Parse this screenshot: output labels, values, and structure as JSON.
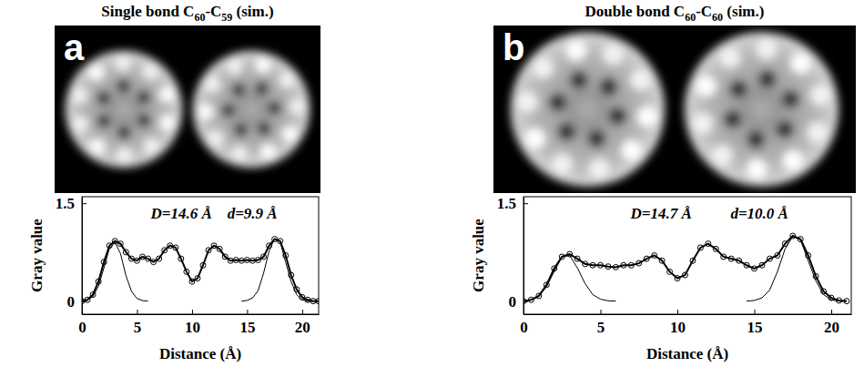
{
  "chart_data": [
    {
      "type": "line",
      "panel_label": "a",
      "title": "Single bond C60-C59 (sim.)",
      "x_label": "Distance (Å)",
      "y_label": "Gray value",
      "annotations": [
        "D=14.6 Å",
        "d=9.9 Å"
      ],
      "xlim": [
        0,
        21.5
      ],
      "ylim": [
        -0.2,
        1.6
      ],
      "xticks": [
        0,
        5,
        10,
        15,
        20
      ],
      "yticks": [
        0,
        1.5
      ],
      "grid": false,
      "series": [
        {
          "color": "#000000",
          "marker": "circle",
          "line_style": "solid",
          "x": [
            0,
            0.5,
            1,
            1.5,
            2,
            2.5,
            3,
            3.5,
            4,
            4.5,
            5,
            5.5,
            6,
            6.5,
            7,
            7.5,
            8,
            8.5,
            9,
            9.5,
            10,
            10.5,
            11,
            11.5,
            12,
            12.5,
            13,
            13.5,
            14,
            14.5,
            15,
            15.5,
            16,
            16.5,
            17,
            17.5,
            18,
            18.5,
            19,
            19.5,
            20,
            20.5,
            21,
            21.5
          ],
          "values": [
            0,
            0.02,
            0.1,
            0.3,
            0.6,
            0.85,
            0.92,
            0.88,
            0.75,
            0.65,
            0.62,
            0.68,
            0.65,
            0.6,
            0.65,
            0.78,
            0.85,
            0.82,
            0.65,
            0.45,
            0.3,
            0.35,
            0.55,
            0.78,
            0.85,
            0.8,
            0.68,
            0.62,
            0.63,
            0.62,
            0.63,
            0.62,
            0.63,
            0.68,
            0.85,
            0.95,
            0.92,
            0.7,
            0.4,
            0.18,
            0.06,
            0.02,
            0,
            0
          ]
        },
        {
          "color": "#000000",
          "marker": "none",
          "line_style": "solid",
          "x": [
            0,
            0.5,
            1,
            1.5,
            2,
            2.5,
            3,
            3.5,
            4,
            4.5,
            5,
            5.5,
            6
          ],
          "values": [
            0.003,
            0.02,
            0.07,
            0.23,
            0.51,
            0.81,
            0.9,
            0.73,
            0.39,
            0.15,
            0.04,
            0.008,
            0
          ]
        },
        {
          "color": "#000000",
          "marker": "none",
          "line_style": "solid",
          "x": [
            14.5,
            15,
            15.5,
            16,
            16.5,
            17,
            17.5,
            18,
            18.5,
            19,
            19.5,
            20,
            20.5,
            21
          ],
          "values": [
            0,
            0.01,
            0.05,
            0.16,
            0.43,
            0.77,
            0.96,
            0.91,
            0.6,
            0.3,
            0.1,
            0.02,
            0,
            0
          ]
        }
      ]
    },
    {
      "type": "line",
      "panel_label": "b",
      "title": "Double bond C60-C60 (sim.)",
      "x_label": "Distance (Å)",
      "y_label": "Gray value",
      "annotations": [
        "D=14.7 Å",
        "d=10.0 Å"
      ],
      "xlim": [
        0,
        21.3
      ],
      "ylim": [
        -0.2,
        1.6
      ],
      "xticks": [
        0,
        5,
        10,
        15,
        20
      ],
      "yticks": [
        0,
        1.5
      ],
      "grid": false,
      "series": [
        {
          "color": "#000000",
          "marker": "circle",
          "line_style": "solid",
          "x": [
            0,
            0.5,
            1,
            1.5,
            2,
            2.5,
            3,
            3.5,
            4,
            4.5,
            5,
            5.5,
            6,
            6.5,
            7,
            7.5,
            8,
            8.5,
            9,
            9.5,
            10,
            10.5,
            11,
            11.5,
            12,
            12.5,
            13,
            13.5,
            14,
            14.5,
            15,
            15.5,
            16,
            16.5,
            17,
            17.5,
            18,
            18.5,
            19,
            19.5,
            20,
            20.5,
            21
          ],
          "values": [
            0,
            0.02,
            0.08,
            0.25,
            0.5,
            0.68,
            0.72,
            0.65,
            0.57,
            0.55,
            0.55,
            0.53,
            0.52,
            0.55,
            0.55,
            0.58,
            0.65,
            0.7,
            0.62,
            0.45,
            0.35,
            0.4,
            0.62,
            0.82,
            0.88,
            0.8,
            0.68,
            0.65,
            0.62,
            0.55,
            0.5,
            0.55,
            0.65,
            0.7,
            0.88,
            1.0,
            0.95,
            0.7,
            0.38,
            0.15,
            0.05,
            0.01,
            0
          ]
        },
        {
          "color": "#000000",
          "marker": "none",
          "line_style": "solid",
          "x": [
            0,
            0.5,
            1,
            1.5,
            2,
            2.5,
            3,
            3.5,
            4,
            4.5,
            5,
            5.5,
            6
          ],
          "values": [
            0.003,
            0.02,
            0.08,
            0.22,
            0.46,
            0.68,
            0.7,
            0.51,
            0.27,
            0.1,
            0.03,
            0.005,
            0
          ]
        },
        {
          "color": "#000000",
          "marker": "none",
          "line_style": "solid",
          "x": [
            14.5,
            15,
            15.5,
            16,
            16.5,
            17,
            17.5,
            18,
            18.5,
            19,
            19.5,
            20,
            20.5,
            21
          ],
          "values": [
            0,
            0.01,
            0.05,
            0.17,
            0.45,
            0.8,
            0.99,
            0.94,
            0.62,
            0.31,
            0.1,
            0.02,
            0,
            0
          ]
        }
      ]
    }
  ]
}
